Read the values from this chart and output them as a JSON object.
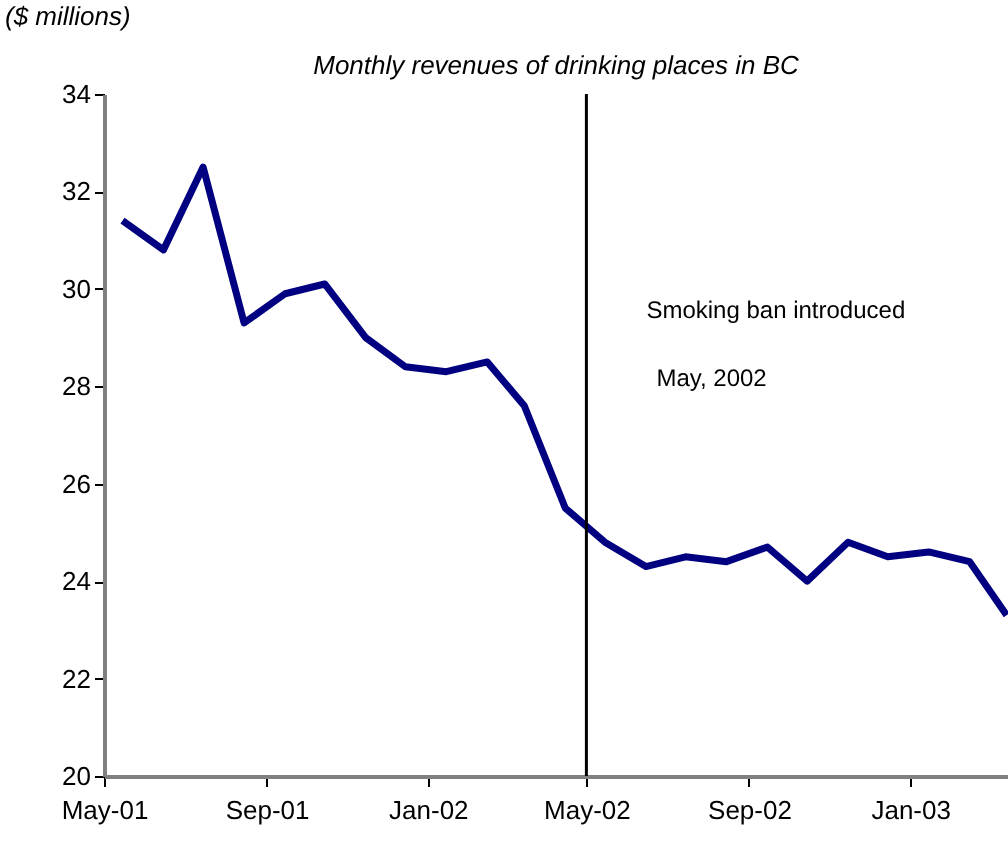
{
  "chart_data": {
    "type": "line",
    "title": "Monthly revenues of drinking places in BC",
    "ylabel": "($ millions)",
    "x": [
      "2001-05-15",
      "2001-06-15",
      "2001-07-15",
      "2001-08-15",
      "2001-09-15",
      "2001-10-15",
      "2001-11-15",
      "2001-12-15",
      "2002-01-15",
      "2002-02-15",
      "2002-03-15",
      "2002-04-15",
      "2002-05-15",
      "2002-06-15",
      "2002-07-15",
      "2002-08-15",
      "2002-09-15",
      "2002-10-15",
      "2002-11-15",
      "2002-12-15",
      "2003-01-15",
      "2003-02-15",
      "2003-03-15"
    ],
    "series": [
      {
        "color": "#000080",
        "values": [
          31.4,
          30.8,
          32.5,
          29.3,
          29.9,
          30.1,
          29.0,
          28.4,
          28.3,
          28.5,
          27.6,
          25.5,
          24.8,
          24.3,
          24.5,
          24.4,
          24.7,
          24.0,
          24.8,
          24.5,
          24.6,
          24.4,
          23.3
        ]
      }
    ],
    "xlim": [
      "2001-05-01",
      "2003-03-16"
    ],
    "xticks": [
      {
        "value": "2001-05-01",
        "label": "May-01"
      },
      {
        "value": "2001-09-01",
        "label": "Sep-01"
      },
      {
        "value": "2002-01-01",
        "label": "Jan-02"
      },
      {
        "value": "2002-05-01",
        "label": "May-02"
      },
      {
        "value": "2002-09-01",
        "label": "Sep-02"
      },
      {
        "value": "2003-01-01",
        "label": "Jan-03"
      }
    ],
    "ylim": [
      20,
      34
    ],
    "yticks": [
      20,
      22,
      24,
      26,
      28,
      30,
      32,
      34
    ],
    "ref_lines": [
      {
        "axis": "x",
        "value": "2002-05-01",
        "label": "Smoking ban introduced",
        "color": "#000000"
      }
    ],
    "annotations": [
      "May, 2002"
    ],
    "grid": false,
    "marker": "none",
    "line_style": "solid"
  }
}
